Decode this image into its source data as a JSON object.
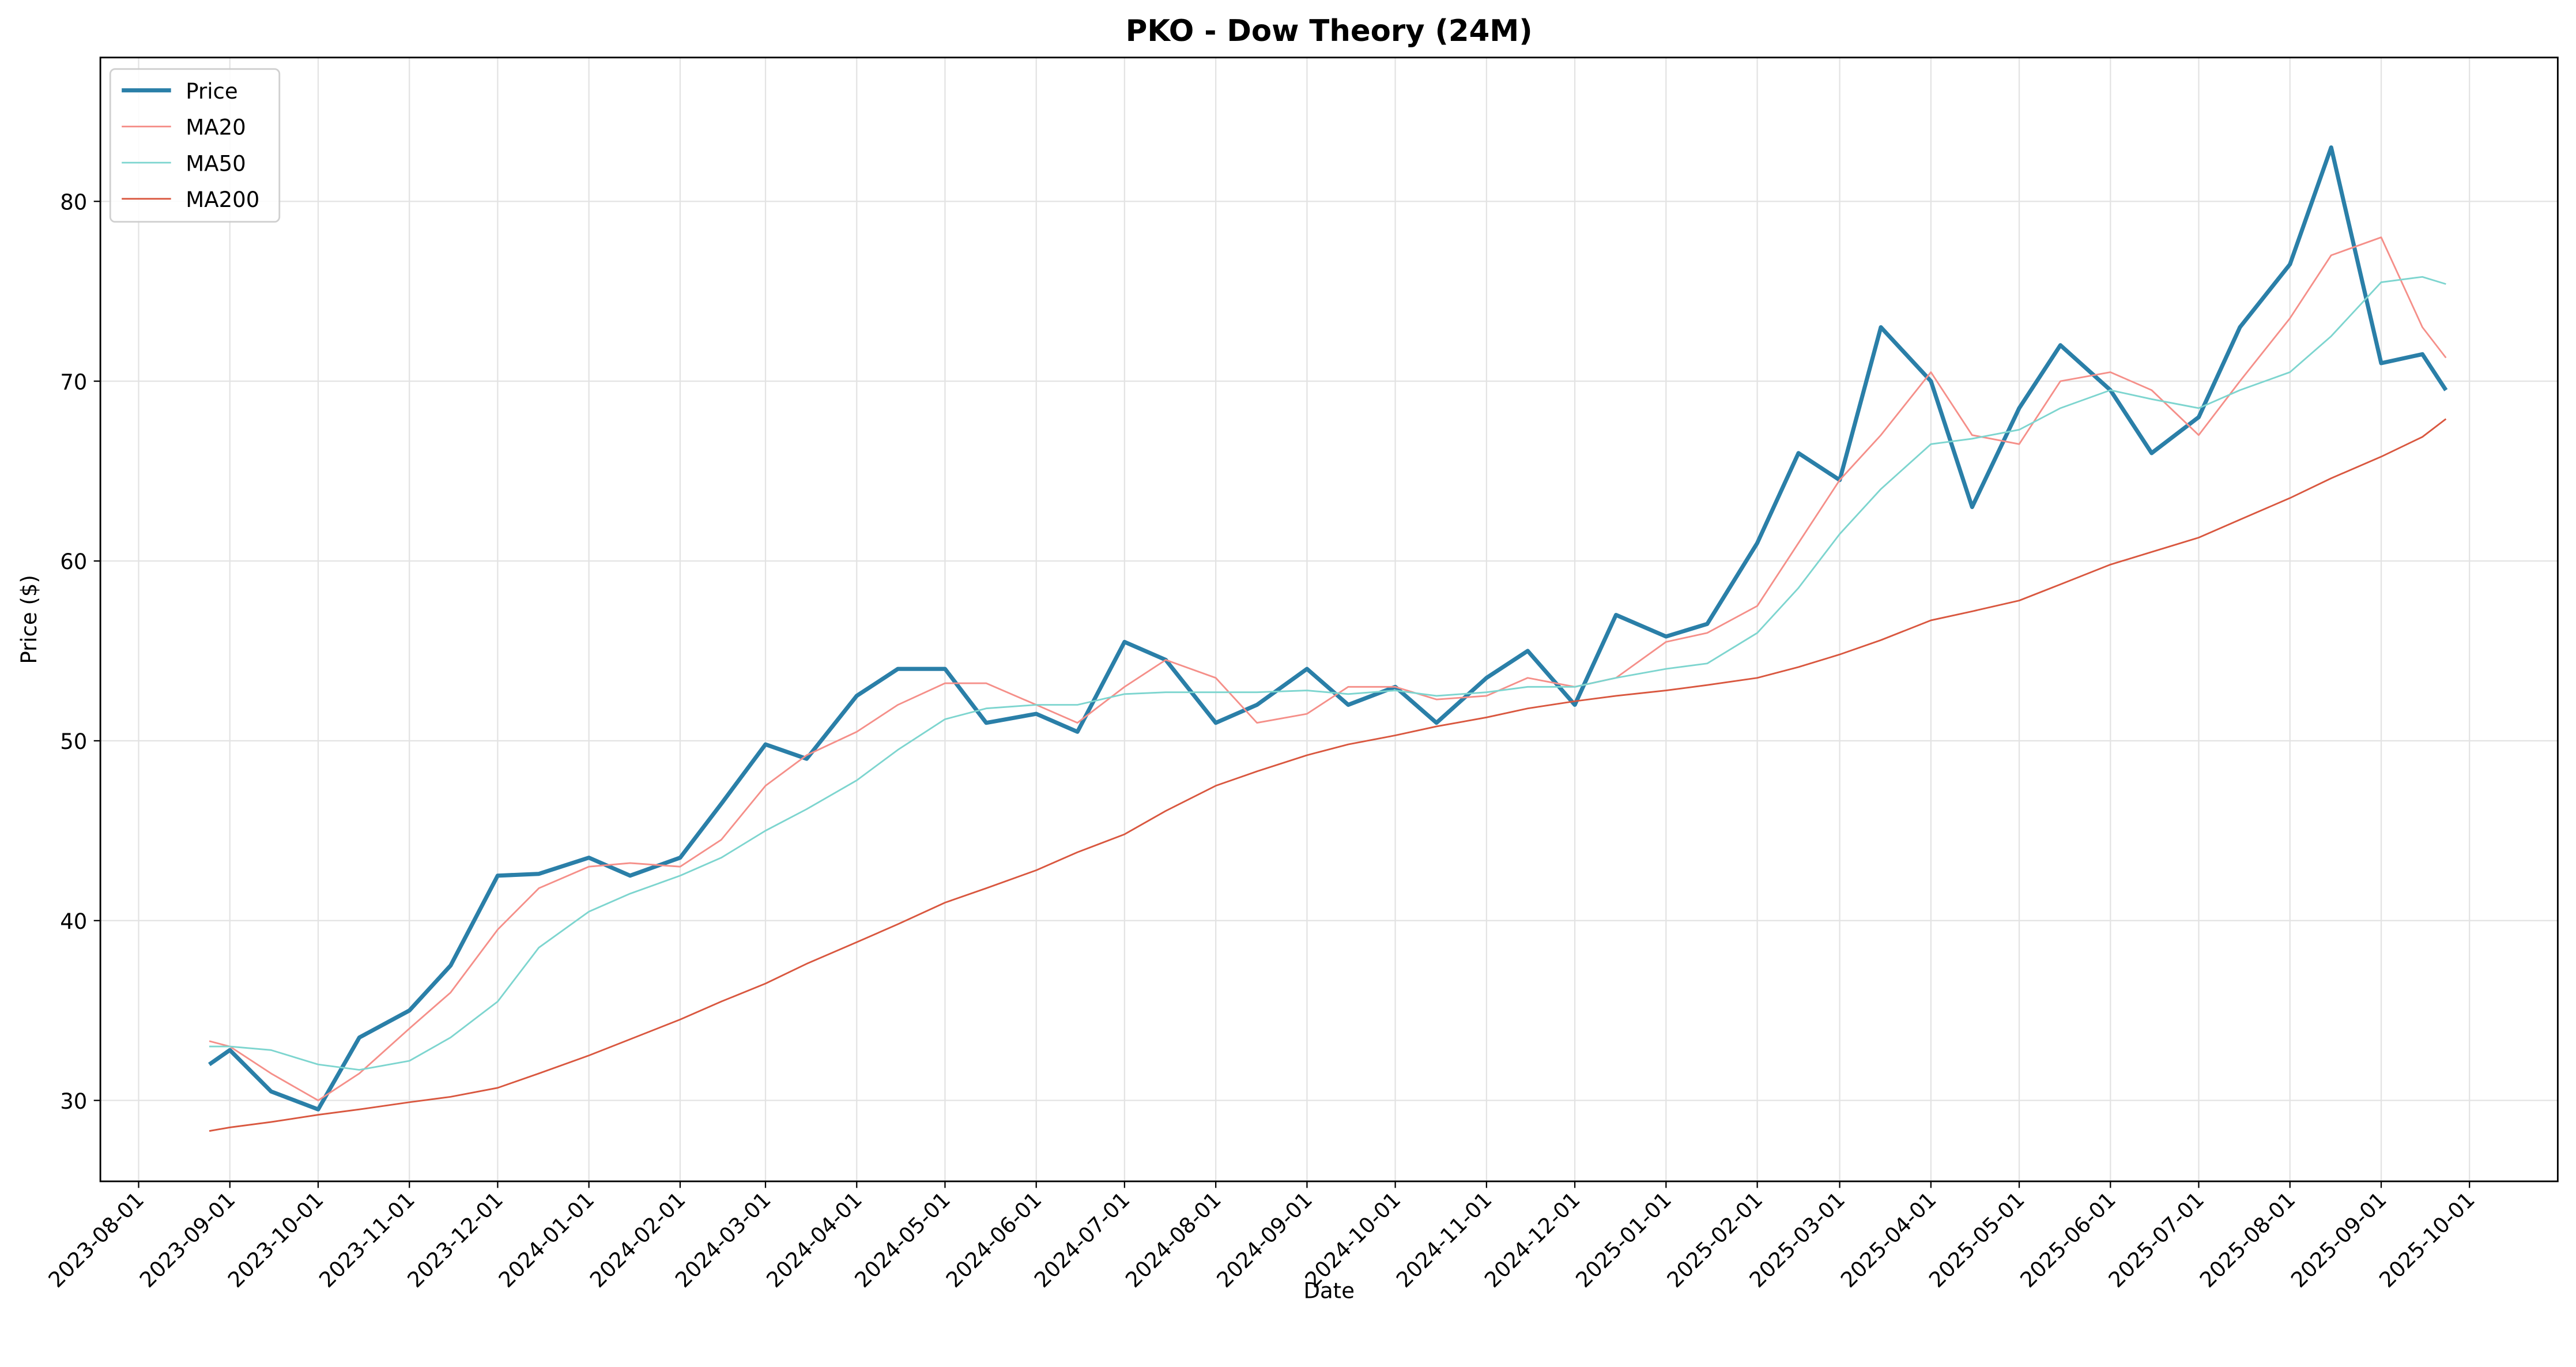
{
  "chart_data": {
    "type": "line",
    "title": "PKO - Dow Theory (24M)",
    "x_label": "Date",
    "y_label": "Price ($)",
    "x": [
      "2023-08-25",
      "2023-09-01",
      "2023-09-15",
      "2023-10-01",
      "2023-10-15",
      "2023-11-01",
      "2023-11-15",
      "2023-12-01",
      "2023-12-15",
      "2024-01-01",
      "2024-01-15",
      "2024-02-01",
      "2024-02-15",
      "2024-03-01",
      "2024-03-15",
      "2024-04-01",
      "2024-04-15",
      "2024-05-01",
      "2024-05-15",
      "2024-06-01",
      "2024-06-15",
      "2024-07-01",
      "2024-07-15",
      "2024-08-01",
      "2024-08-15",
      "2024-09-01",
      "2024-09-15",
      "2024-10-01",
      "2024-10-15",
      "2024-11-01",
      "2024-11-15",
      "2024-12-01",
      "2024-12-15",
      "2025-01-01",
      "2025-01-15",
      "2025-02-01",
      "2025-02-15",
      "2025-03-01",
      "2025-03-15",
      "2025-04-01",
      "2025-04-15",
      "2025-05-01",
      "2025-05-15",
      "2025-06-01",
      "2025-06-15",
      "2025-07-01",
      "2025-07-15",
      "2025-08-01",
      "2025-08-15",
      "2025-09-01",
      "2025-09-15",
      "2025-09-23"
    ],
    "series": [
      {
        "name": "Price",
        "color": "#2a7fa8",
        "width": 2.5,
        "values": [
          32,
          32.8,
          30.5,
          29.5,
          33.5,
          35,
          37.5,
          42.5,
          42.6,
          43.5,
          42.5,
          43.5,
          46.5,
          49.8,
          49,
          52.5,
          54,
          54,
          51,
          51.5,
          50.5,
          55.5,
          54.5,
          51,
          52,
          54,
          52,
          53,
          51,
          53.5,
          55,
          52,
          57,
          55.8,
          56.5,
          61,
          66,
          64.5,
          73,
          70,
          63,
          68.5,
          72,
          69.5,
          66,
          68,
          73,
          76.5,
          83,
          71,
          71.5,
          69.5
        ]
      },
      {
        "name": "MA20",
        "color": "#f58f89",
        "width": 1,
        "values": [
          33.3,
          33,
          31.5,
          30,
          31.5,
          34,
          36,
          39.5,
          41.8,
          43,
          43.2,
          43,
          44.5,
          47.5,
          49.2,
          50.5,
          52,
          53.2,
          53.2,
          52,
          51,
          53,
          54.5,
          53.5,
          51,
          51.5,
          53,
          53,
          52.3,
          52.5,
          53.5,
          53,
          53.5,
          55.5,
          56,
          57.5,
          61,
          64.5,
          67,
          70.5,
          67,
          66.5,
          70,
          70.5,
          69.5,
          67,
          70,
          73.5,
          77,
          78,
          73,
          71.3
        ]
      },
      {
        "name": "MA50",
        "color": "#7dd5cf",
        "width": 1,
        "values": [
          33,
          33,
          32.8,
          32,
          31.7,
          32.2,
          33.5,
          35.5,
          38.5,
          40.5,
          41.5,
          42.5,
          43.5,
          45,
          46.2,
          47.8,
          49.5,
          51.2,
          51.8,
          52,
          52,
          52.6,
          52.7,
          52.7,
          52.7,
          52.8,
          52.6,
          52.8,
          52.5,
          52.7,
          53,
          53,
          53.5,
          54,
          54.3,
          56,
          58.5,
          61.5,
          64,
          66.5,
          66.8,
          67.3,
          68.5,
          69.5,
          69,
          68.5,
          69.5,
          70.5,
          72.5,
          75.5,
          75.8,
          75.4
        ]
      },
      {
        "name": "MA200",
        "color": "#d9573f",
        "width": 1,
        "values": [
          28.3,
          28.5,
          28.8,
          29.2,
          29.5,
          29.9,
          30.2,
          30.7,
          31.5,
          32.5,
          33.4,
          34.5,
          35.5,
          36.5,
          37.6,
          38.8,
          39.8,
          41,
          41.8,
          42.8,
          43.8,
          44.8,
          46.1,
          47.5,
          48.3,
          49.2,
          49.8,
          50.3,
          50.8,
          51.3,
          51.8,
          52.2,
          52.5,
          52.8,
          53.1,
          53.5,
          54.1,
          54.8,
          55.6,
          56.7,
          57.2,
          57.8,
          58.7,
          59.8,
          60.5,
          61.3,
          62.3,
          63.5,
          64.6,
          65.8,
          66.9,
          67.9
        ]
      }
    ],
    "xlim": [
      "2023-07-19",
      "2025-10-31"
    ],
    "xticks": [
      "2023-08-01",
      "2023-09-01",
      "2023-10-01",
      "2023-11-01",
      "2023-12-01",
      "2024-01-01",
      "2024-02-01",
      "2024-03-01",
      "2024-04-01",
      "2024-05-01",
      "2024-06-01",
      "2024-07-01",
      "2024-08-01",
      "2024-09-01",
      "2024-10-01",
      "2024-11-01",
      "2024-12-01",
      "2025-01-01",
      "2025-02-01",
      "2025-03-01",
      "2025-04-01",
      "2025-05-01",
      "2025-06-01",
      "2025-07-01",
      "2025-08-01",
      "2025-09-01",
      "2025-10-01"
    ],
    "ylim": [
      25.5,
      88
    ],
    "yticks": [
      30,
      40,
      50,
      60,
      70,
      80
    ],
    "grid": true,
    "legend": "upper left"
  }
}
